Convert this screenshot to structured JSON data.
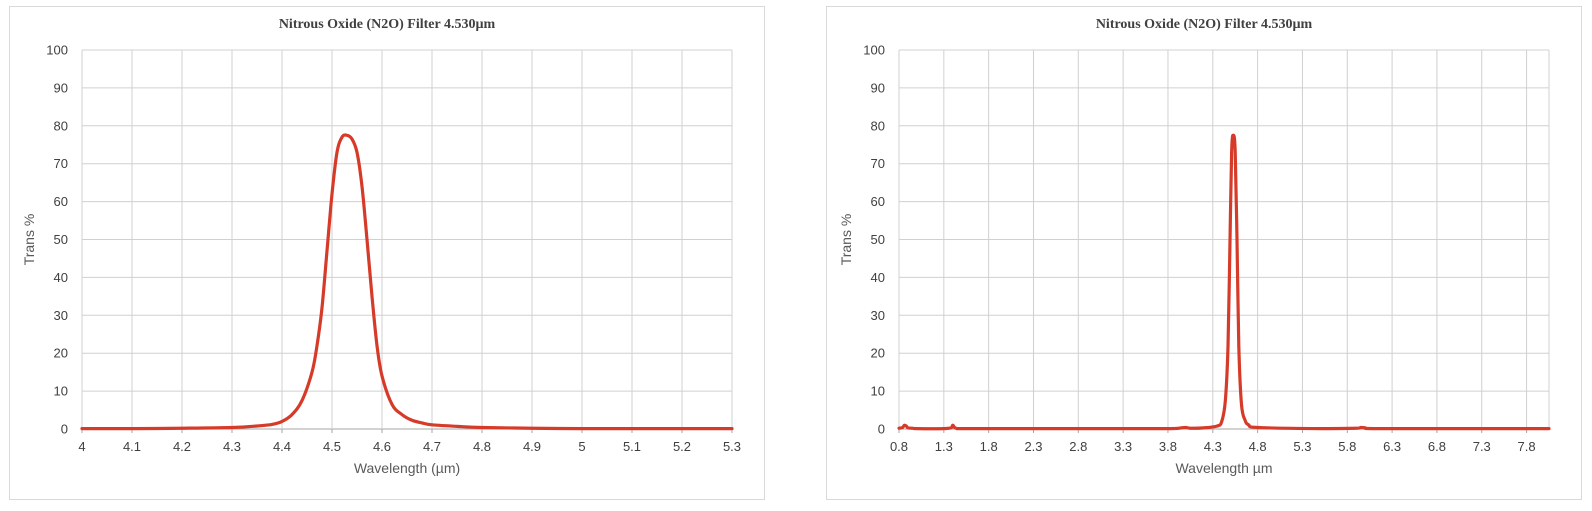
{
  "chart_data": [
    {
      "type": "line",
      "title": "Nitrous Oxide (N2O) Filter 4.530µm",
      "xlabel": "Wavelength (µm)",
      "ylabel": "Trans %",
      "xlim": [
        4.0,
        5.3
      ],
      "ylim": [
        0,
        100
      ],
      "xticks": [
        "4",
        "4.1",
        "4.2",
        "4.3",
        "4.4",
        "4.5",
        "4.6",
        "4.7",
        "4.8",
        "4.9",
        "5",
        "5.1",
        "5.2",
        "5.3"
      ],
      "yticks": [
        "0",
        "10",
        "20",
        "30",
        "40",
        "50",
        "60",
        "70",
        "80",
        "90",
        "100"
      ],
      "grid": true,
      "line_color": "#d63b2a",
      "series": [
        {
          "x": [
            4.0,
            4.1,
            4.2,
            4.3,
            4.35,
            4.38,
            4.4,
            4.42,
            4.44,
            4.46,
            4.47,
            4.48,
            4.49,
            4.5,
            4.51,
            4.52,
            4.53,
            4.54,
            4.55,
            4.56,
            4.57,
            4.58,
            4.59,
            4.6,
            4.62,
            4.64,
            4.66,
            4.68,
            4.7,
            4.75,
            4.8,
            4.9,
            5.0,
            5.1,
            5.2,
            5.3
          ],
          "y": [
            0.1,
            0.1,
            0.2,
            0.4,
            0.8,
            1.2,
            2.0,
            3.8,
            7.5,
            15.0,
            22.0,
            32.0,
            47.0,
            62.0,
            73.0,
            77.0,
            77.5,
            76.5,
            73.0,
            64.0,
            50.0,
            35.0,
            22.0,
            14.0,
            6.5,
            3.8,
            2.3,
            1.6,
            1.1,
            0.7,
            0.4,
            0.2,
            0.1,
            0.1,
            0.1,
            0.1
          ]
        }
      ]
    },
    {
      "type": "line",
      "title": "Nitrous Oxide (N2O) Filter 4.530µm",
      "xlabel": "Wavelength µm",
      "ylabel": "Trans %",
      "xlim": [
        0.8,
        8.05
      ],
      "ylim": [
        0,
        100
      ],
      "xticks": [
        "0.8",
        "1.3",
        "1.8",
        "2.3",
        "2.8",
        "3.3",
        "3.8",
        "4.3",
        "4.8",
        "5.3",
        "5.8",
        "6.3",
        "6.8",
        "7.3",
        "7.8"
      ],
      "yticks": [
        "0",
        "10",
        "20",
        "30",
        "40",
        "50",
        "60",
        "70",
        "80",
        "90",
        "100"
      ],
      "grid": true,
      "line_color": "#d63b2a",
      "series": [
        {
          "x": [
            0.8,
            0.84,
            0.86,
            0.88,
            0.9,
            0.95,
            1.0,
            1.3,
            1.38,
            1.4,
            1.42,
            1.45,
            1.5,
            2.0,
            3.0,
            3.8,
            3.95,
            4.0,
            4.05,
            4.2,
            4.35,
            4.4,
            4.44,
            4.47,
            4.49,
            4.51,
            4.53,
            4.55,
            4.57,
            4.59,
            4.62,
            4.66,
            4.7,
            4.8,
            5.5,
            5.9,
            5.95,
            6.0,
            6.1,
            7.0,
            8.05
          ],
          "y": [
            0.2,
            0.4,
            1.0,
            0.8,
            0.3,
            0.2,
            0.1,
            0.1,
            0.3,
            1.0,
            0.4,
            0.1,
            0.1,
            0.1,
            0.1,
            0.1,
            0.3,
            0.4,
            0.2,
            0.3,
            0.8,
            2.0,
            7.5,
            22.0,
            47.0,
            73.0,
            77.5,
            73.0,
            50.0,
            22.0,
            6.5,
            2.3,
            1.1,
            0.4,
            0.1,
            0.2,
            0.4,
            0.3,
            0.1,
            0.1,
            0.1
          ]
        }
      ]
    }
  ]
}
